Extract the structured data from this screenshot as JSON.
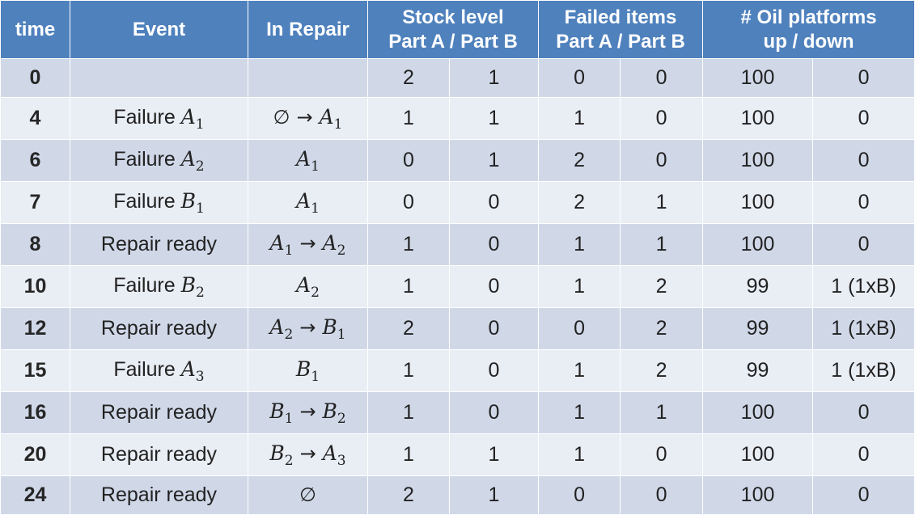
{
  "header": {
    "time": "time",
    "event": "Event",
    "in_repair": "In Repair",
    "stock_line1": "Stock level",
    "stock_line2": "Part A / Part B",
    "failed_line1": "Failed items",
    "failed_line2": "Part A / Part B",
    "oil_line1": "# Oil platforms",
    "oil_line2": "up /  down"
  },
  "symbols": {
    "arrow": "→",
    "empty_set": "∅",
    "A": "A",
    "B": "B"
  },
  "rows": [
    {
      "time": "0",
      "event_text": "",
      "event_sym": "",
      "event_sub": "",
      "repair": [],
      "stock_a": "2",
      "stock_b": "1",
      "failed_a": "0",
      "failed_b": "0",
      "up": "100",
      "down": "0"
    },
    {
      "time": "4",
      "event_text": "Failure",
      "event_sym": "A",
      "event_sub": "1",
      "repair": [
        "∅",
        "A1"
      ],
      "stock_a": "1",
      "stock_b": "1",
      "failed_a": "1",
      "failed_b": "0",
      "up": "100",
      "down": "0"
    },
    {
      "time": "6",
      "event_text": "Failure",
      "event_sym": "A",
      "event_sub": "2",
      "repair": [
        "A1"
      ],
      "stock_a": "0",
      "stock_b": "1",
      "failed_a": "2",
      "failed_b": "0",
      "up": "100",
      "down": "0"
    },
    {
      "time": "7",
      "event_text": "Failure",
      "event_sym": "B",
      "event_sub": "1",
      "repair": [
        "A1"
      ],
      "stock_a": "0",
      "stock_b": "0",
      "failed_a": "2",
      "failed_b": "1",
      "up": "100",
      "down": "0"
    },
    {
      "time": "8",
      "event_text": "Repair ready",
      "event_sym": "",
      "event_sub": "",
      "repair": [
        "A1",
        "A2"
      ],
      "stock_a": "1",
      "stock_b": "0",
      "failed_a": "1",
      "failed_b": "1",
      "up": "100",
      "down": "0"
    },
    {
      "time": "10",
      "event_text": "Failure",
      "event_sym": "B",
      "event_sub": "2",
      "repair": [
        "A2"
      ],
      "stock_a": "1",
      "stock_b": "0",
      "failed_a": "1",
      "failed_b": "2",
      "up": "99",
      "down": "1 (1xB)"
    },
    {
      "time": "12",
      "event_text": "Repair ready",
      "event_sym": "",
      "event_sub": "",
      "repair": [
        "A2",
        "B1"
      ],
      "stock_a": "2",
      "stock_b": "0",
      "failed_a": "0",
      "failed_b": "2",
      "up": "99",
      "down": "1 (1xB)"
    },
    {
      "time": "15",
      "event_text": "Failure",
      "event_sym": "A",
      "event_sub": "3",
      "repair": [
        "B1"
      ],
      "stock_a": "1",
      "stock_b": "0",
      "failed_a": "1",
      "failed_b": "2",
      "up": "99",
      "down": "1 (1xB)"
    },
    {
      "time": "16",
      "event_text": "Repair ready",
      "event_sym": "",
      "event_sub": "",
      "repair": [
        "B1",
        "B2"
      ],
      "stock_a": "1",
      "stock_b": "0",
      "failed_a": "1",
      "failed_b": "1",
      "up": "100",
      "down": "0"
    },
    {
      "time": "20",
      "event_text": "Repair ready",
      "event_sym": "",
      "event_sub": "",
      "repair": [
        "B2",
        "A3"
      ],
      "stock_a": "1",
      "stock_b": "1",
      "failed_a": "1",
      "failed_b": "0",
      "up": "100",
      "down": "0"
    },
    {
      "time": "24",
      "event_text": "Repair ready",
      "event_sym": "",
      "event_sub": "",
      "repair": [
        "∅"
      ],
      "stock_a": "2",
      "stock_b": "1",
      "failed_a": "0",
      "failed_b": "0",
      "up": "100",
      "down": "0"
    }
  ],
  "colors": {
    "header_bg": "#4f81bd",
    "row_dark": "#d0d8e8",
    "row_light": "#e9edf4"
  }
}
